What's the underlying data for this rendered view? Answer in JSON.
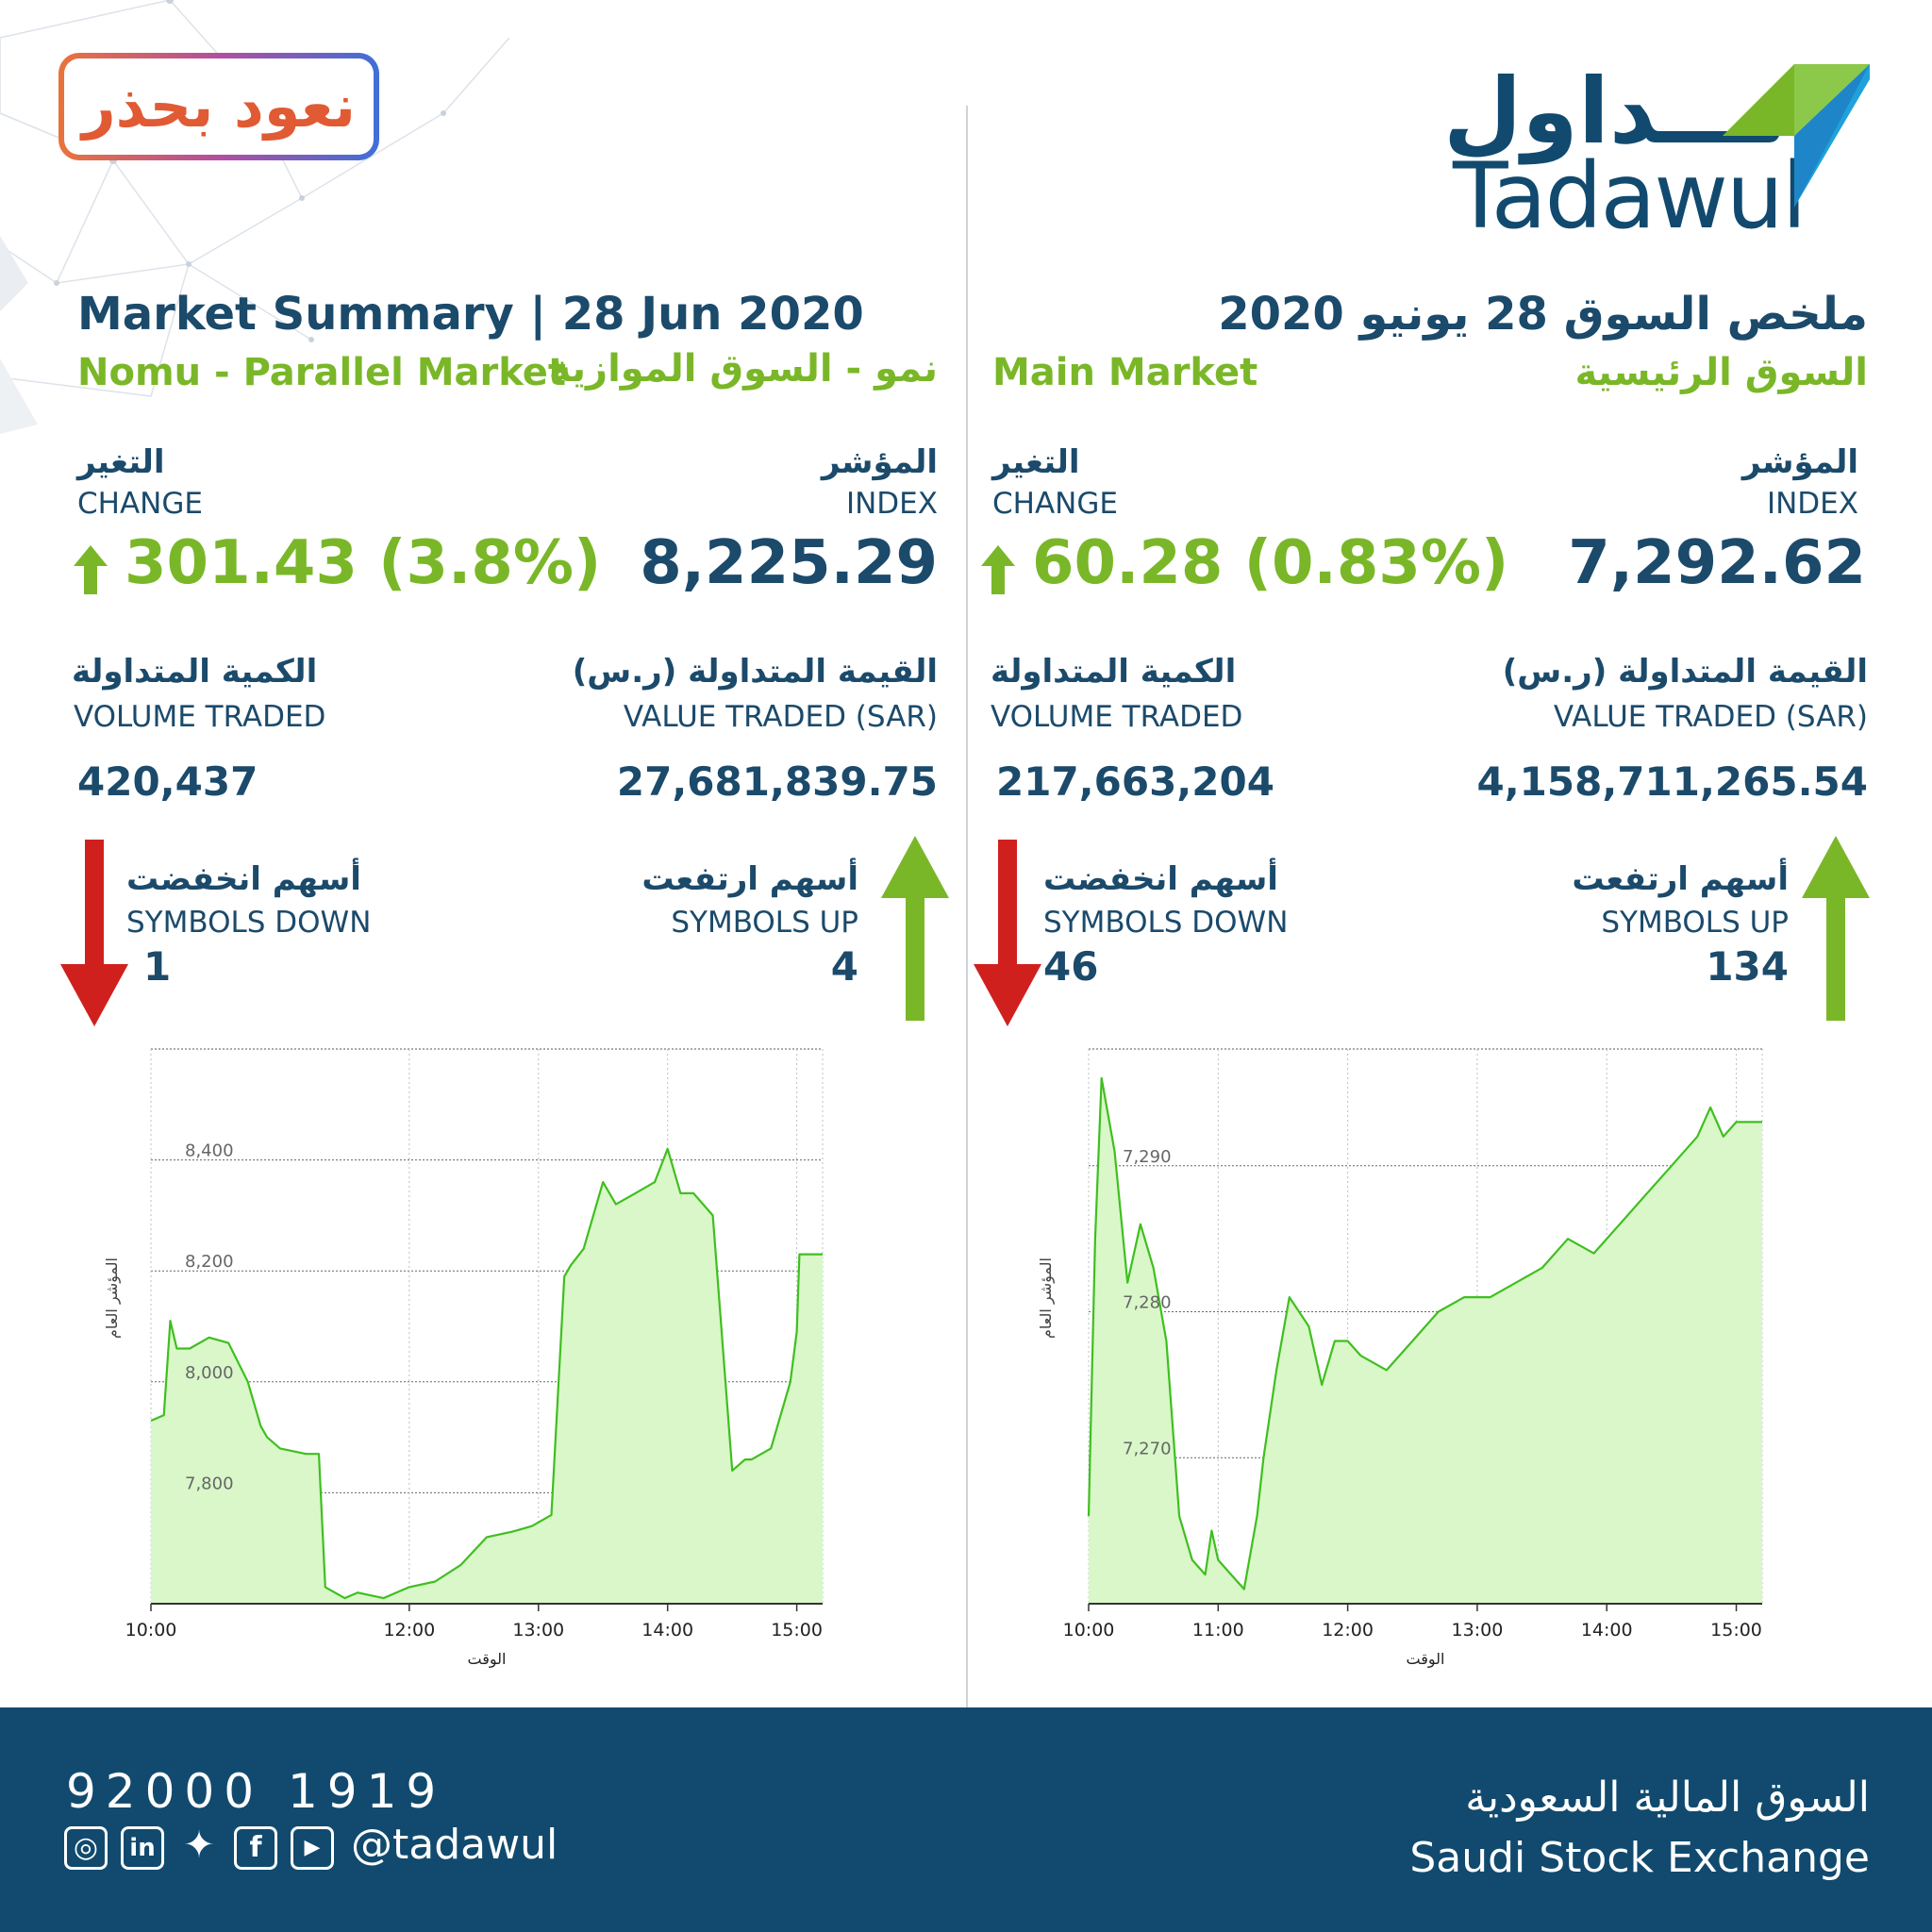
{
  "badge_text": "نعود بحذر",
  "logo": {
    "arabic": "تـــداول",
    "latin": "Tadawul"
  },
  "nomu": {
    "heading": "Market Summary | 28  Jun 2020",
    "market_en": "Nomu - Parallel Market",
    "market_ar": "نمو - السوق الموازية",
    "change_ar": "التغير",
    "change_en": "CHANGE",
    "change_value": "301.43 (3.8%)",
    "index_ar": "المؤشر",
    "index_en": "INDEX",
    "index_value": "8,225.29",
    "volume_ar": "الكمية المتداولة",
    "volume_en": "VOLUME TRADED",
    "volume_value": "420,437",
    "value_ar": "القيمة المتداولة (ر.س)",
    "value_en": "VALUE TRADED (SAR)",
    "value_value": "27,681,839.75",
    "down_ar": "أسهم انخفضت",
    "down_en": "SYMBOLS DOWN",
    "down_value": "1",
    "up_ar": "أسهم ارتفعت",
    "up_en": "SYMBOLS UP",
    "up_value": "4"
  },
  "main": {
    "heading": "ملخص السوق  28 يونيو 2020",
    "market_en": "Main Market",
    "market_ar": "السوق الرئيسية",
    "change_ar": "التغير",
    "change_en": "CHANGE",
    "change_value": "60.28 (0.83%)",
    "index_ar": "المؤشر",
    "index_en": "INDEX",
    "index_value": "7,292.62",
    "volume_ar": "الكمية المتداولة",
    "volume_en": "VOLUME TRADED",
    "volume_value": "217,663,204",
    "value_ar": "القيمة المتداولة (ر.س)",
    "value_en": "VALUE TRADED (SAR)",
    "value_value": "4,158,711,265.54",
    "down_ar": "أسهم انخفضت",
    "down_en": "SYMBOLS DOWN",
    "down_value": "46",
    "up_ar": "أسهم ارتفعت",
    "up_en": "SYMBOLS UP",
    "up_value": "134"
  },
  "footer": {
    "phone": "92000 1919",
    "handle": "@tadawul",
    "exchange_ar": "السوق المالية السعودية",
    "exchange_en": "Saudi Stock Exchange",
    "social_icons": [
      "instagram-icon",
      "linkedin-icon",
      "twitter-icon",
      "facebook-icon",
      "youtube-icon"
    ]
  },
  "colors": {
    "navy": "#1b4a6b",
    "green": "#7ab728",
    "red": "#d0201e",
    "footer": "#114a6e",
    "line": "#3fbf1f",
    "fill": "#d9f7c9"
  },
  "chart_data": [
    {
      "type": "area",
      "market": "Nomu",
      "xlabel": "الوقت",
      "ylabel": "المؤشر العام",
      "x_ticks": [
        "10:00",
        "12:00",
        "13:00",
        "14:00",
        "15:00"
      ],
      "x_tick_hours": [
        10,
        12,
        13,
        14,
        15
      ],
      "y_ticks": [
        7800,
        8000,
        8200,
        8400
      ],
      "y_tick_labels": [
        "7,800",
        "8,000",
        "8,200",
        "8,400"
      ],
      "ylim": [
        7600,
        8600
      ],
      "xlim": [
        10.0,
        15.2
      ],
      "grid": true,
      "x": [
        10.0,
        10.1,
        10.15,
        10.2,
        10.3,
        10.45,
        10.6,
        10.75,
        10.85,
        10.9,
        11.0,
        11.2,
        11.3,
        11.35,
        11.5,
        11.6,
        11.8,
        12.0,
        12.2,
        12.4,
        12.6,
        12.8,
        12.95,
        13.1,
        13.2,
        13.25,
        13.35,
        13.5,
        13.6,
        13.75,
        13.9,
        14.0,
        14.1,
        14.2,
        14.35,
        14.5,
        14.6,
        14.65,
        14.8,
        14.95,
        15.0,
        15.02,
        15.2
      ],
      "values": [
        7930,
        7940,
        8110,
        8060,
        8060,
        8080,
        8070,
        8000,
        7920,
        7900,
        7880,
        7870,
        7870,
        7630,
        7610,
        7620,
        7610,
        7630,
        7640,
        7670,
        7720,
        7730,
        7740,
        7760,
        8190,
        8210,
        8240,
        8360,
        8320,
        8340,
        8360,
        8420,
        8340,
        8340,
        8300,
        7840,
        7860,
        7860,
        7880,
        8000,
        8090,
        8230,
        8230
      ]
    },
    {
      "type": "area",
      "market": "Main",
      "xlabel": "الوقت",
      "ylabel": "المؤشر العام",
      "x_ticks": [
        "10:00",
        "11:00",
        "12:00",
        "13:00",
        "14:00",
        "15:00"
      ],
      "x_tick_hours": [
        10,
        11,
        12,
        13,
        14,
        15
      ],
      "y_ticks": [
        7270,
        7280,
        7290
      ],
      "y_tick_labels": [
        "7,270",
        "7,280",
        "7,290"
      ],
      "ylim": [
        7260,
        7298
      ],
      "xlim": [
        10.0,
        15.2
      ],
      "grid": true,
      "x": [
        10.0,
        10.05,
        10.1,
        10.2,
        10.3,
        10.4,
        10.5,
        10.6,
        10.7,
        10.8,
        10.9,
        10.95,
        11.0,
        11.1,
        11.2,
        11.3,
        11.35,
        11.45,
        11.55,
        11.7,
        11.8,
        11.9,
        12.0,
        12.1,
        12.3,
        12.5,
        12.7,
        12.9,
        13.1,
        13.3,
        13.5,
        13.7,
        13.9,
        14.1,
        14.3,
        14.5,
        14.6,
        14.7,
        14.8,
        14.9,
        15.0,
        15.05,
        15.2
      ],
      "values": [
        7266,
        7285,
        7296,
        7291,
        7282,
        7286,
        7283,
        7278,
        7266,
        7263,
        7262,
        7265,
        7263,
        7262,
        7261,
        7266,
        7270,
        7276,
        7281,
        7279,
        7275,
        7278,
        7278,
        7277,
        7276,
        7278,
        7280,
        7281,
        7281,
        7282,
        7283,
        7285,
        7284,
        7286,
        7288,
        7290,
        7291,
        7292,
        7294,
        7292,
        7293,
        7293,
        7293
      ]
    }
  ]
}
